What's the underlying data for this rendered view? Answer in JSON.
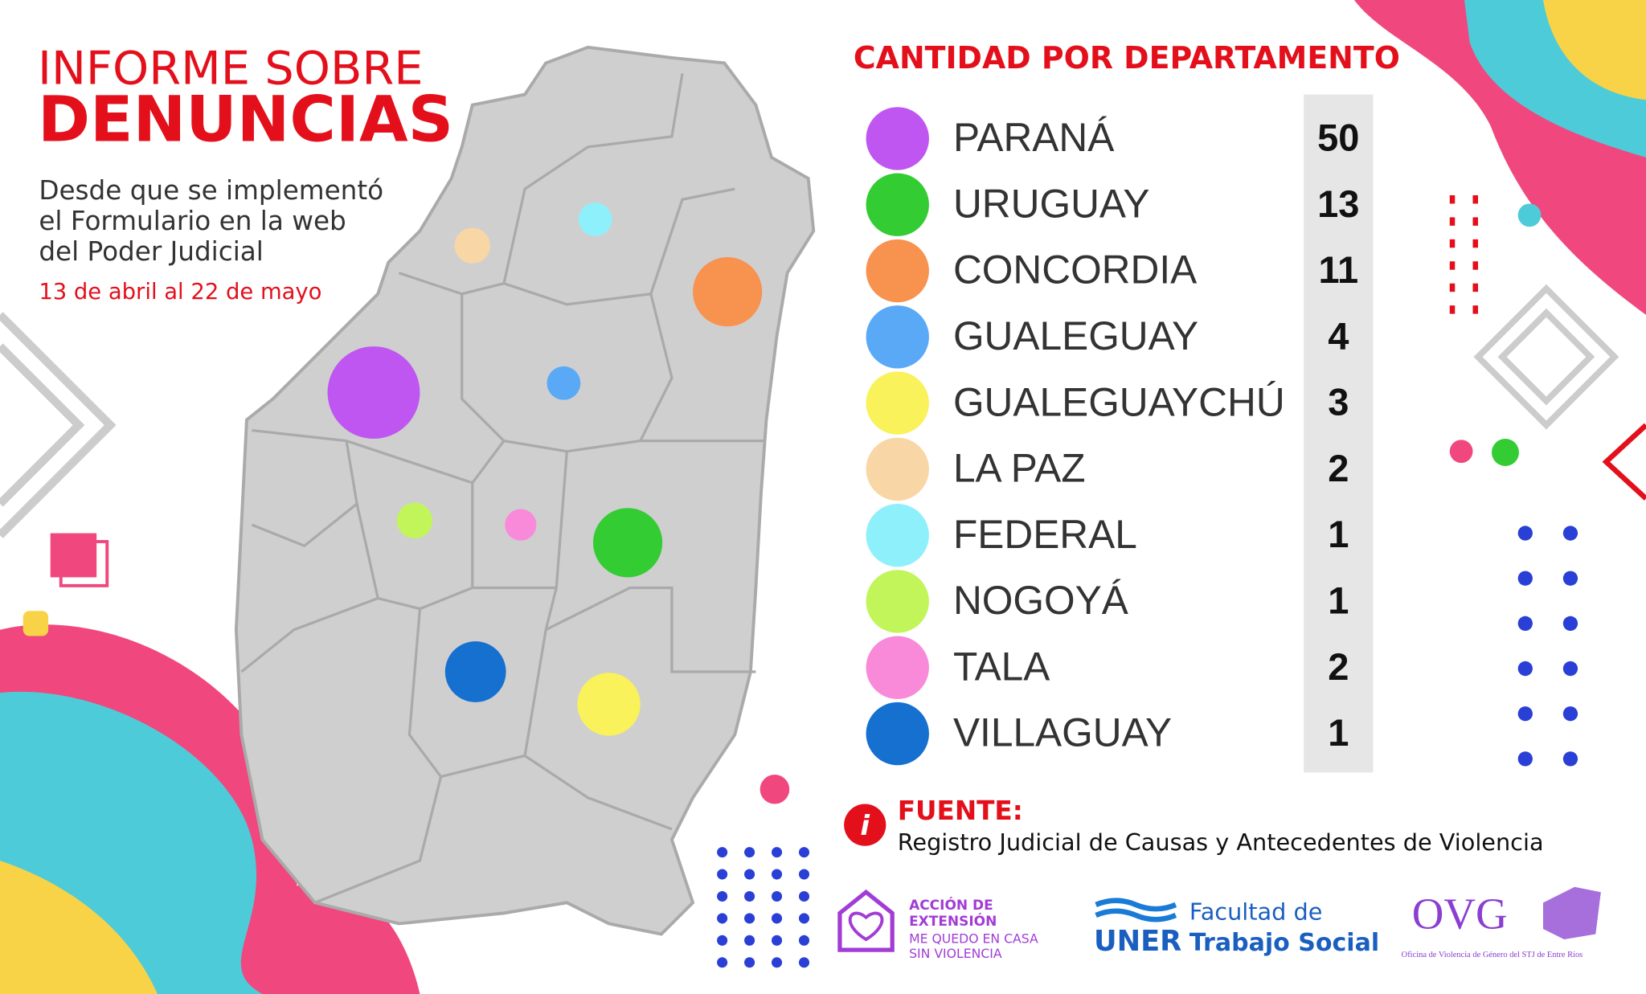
{
  "header": {
    "title_line1": "INFORME SOBRE",
    "title_line2": "DENUNCIAS",
    "subtitle_lines": [
      "Desde que se implementó",
      "el Formulario en la web",
      "del Poder Judicial"
    ],
    "date_range": "13 de abril al 22 de mayo"
  },
  "table": {
    "title": "CANTIDAD POR DEPARTAMENTO",
    "rows": [
      {
        "name": "PARANÁ",
        "color": "#c056f2",
        "value": 50
      },
      {
        "name": "URUGUAY",
        "color": "#33cc33",
        "value": 13
      },
      {
        "name": "CONCORDIA",
        "color": "#f7924f",
        "value": 11
      },
      {
        "name": "GUALEGUAY",
        "color": "#5aa9f6",
        "value": 4
      },
      {
        "name": "GUALEGUAYCHÚ",
        "color": "#f9f25a",
        "value": 3
      },
      {
        "name": "LA PAZ",
        "color": "#f9d6a6",
        "value": 2
      },
      {
        "name": "FEDERAL",
        "color": "#8ef0fb",
        "value": 1
      },
      {
        "name": "NOGOYÁ",
        "color": "#c2f55a",
        "value": 1
      },
      {
        "name": "TALA",
        "color": "#f98ad9",
        "value": 2
      },
      {
        "name": "VILLAGUAY",
        "color": "#1570d0",
        "value": 1
      }
    ]
  },
  "source": {
    "label": "FUENTE:",
    "text": "Registro Judicial de Causas y Antecedentes de Violencia"
  },
  "logos": {
    "accion_line1": "ACCIÓN DE",
    "accion_line2": "EXTENSIÓN",
    "accion_line3": "ME QUEDO EN CASA",
    "accion_line4": "SIN VIOLENCIA",
    "uner": "UNER",
    "facultad_line1": "Facultad de",
    "facultad_line2": "Trabajo Social",
    "ovg": "OVG",
    "ovg_caption": "Oficina de Violencia de Género del STJ de Entre Ríos"
  }
}
